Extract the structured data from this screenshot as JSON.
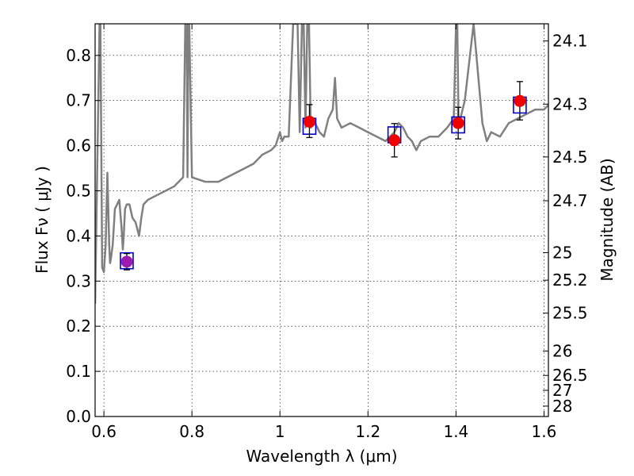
{
  "chart_data": {
    "type": "line",
    "xlabel": "Wavelength  λ (μm)",
    "ylabel": "Flux  Fν  ( μJy )",
    "ylabel_right": "Magnitude (AB)",
    "xlim": [
      0.58,
      1.61
    ],
    "ylim": [
      0.0,
      0.87
    ],
    "grid": true,
    "x_ticks": [
      {
        "value": 0.6,
        "label": "0.6"
      },
      {
        "value": 0.8,
        "label": "0.8"
      },
      {
        "value": 1.0,
        "label": "1"
      },
      {
        "value": 1.2,
        "label": "1.2"
      },
      {
        "value": 1.4,
        "label": "1.4"
      },
      {
        "value": 1.6,
        "label": "1.6"
      }
    ],
    "y_ticks": [
      {
        "value": 0.0,
        "label": "0.0"
      },
      {
        "value": 0.1,
        "label": "0.1"
      },
      {
        "value": 0.2,
        "label": "0.2"
      },
      {
        "value": 0.3,
        "label": "0.3"
      },
      {
        "value": 0.4,
        "label": "0.4"
      },
      {
        "value": 0.5,
        "label": "0.5"
      },
      {
        "value": 0.6,
        "label": "0.6"
      },
      {
        "value": 0.7,
        "label": "0.7"
      },
      {
        "value": 0.8,
        "label": "0.8"
      }
    ],
    "mag_ticks": [
      {
        "flux": 0.832,
        "label": "24.1"
      },
      {
        "flux": 0.692,
        "label": "24.3"
      },
      {
        "flux": 0.575,
        "label": "24.5"
      },
      {
        "flux": 0.478,
        "label": "24.7"
      },
      {
        "flux": 0.363,
        "label": "25"
      },
      {
        "flux": 0.302,
        "label": "25.2"
      },
      {
        "flux": 0.229,
        "label": "25.5"
      },
      {
        "flux": 0.145,
        "label": "26"
      },
      {
        "flux": 0.091,
        "label": "26.5"
      },
      {
        "flux": 0.058,
        "label": "27"
      },
      {
        "flux": 0.023,
        "label": "28"
      }
    ],
    "sed_model": {
      "color": "#808080",
      "x": [
        0.58,
        0.59,
        0.592,
        0.596,
        0.6,
        0.604,
        0.608,
        0.612,
        0.614,
        0.616,
        0.62,
        0.625,
        0.63,
        0.635,
        0.64,
        0.643,
        0.645,
        0.648,
        0.652,
        0.658,
        0.665,
        0.672,
        0.68,
        0.685,
        0.69,
        0.7,
        0.72,
        0.74,
        0.76,
        0.78,
        0.785,
        0.788,
        0.79,
        0.792,
        0.794,
        0.8,
        0.83,
        0.86,
        0.9,
        0.92,
        0.94,
        0.96,
        0.98,
        0.99,
        1.0,
        1.005,
        1.01,
        1.02,
        1.03,
        1.04,
        1.045,
        1.05,
        1.054,
        1.058,
        1.062,
        1.066,
        1.07,
        1.08,
        1.09,
        1.1,
        1.11,
        1.12,
        1.125,
        1.13,
        1.14,
        1.16,
        1.18,
        1.2,
        1.22,
        1.24,
        1.26,
        1.27,
        1.28,
        1.29,
        1.3,
        1.31,
        1.32,
        1.34,
        1.36,
        1.38,
        1.395,
        1.4,
        1.403,
        1.406,
        1.41,
        1.42,
        1.44,
        1.46,
        1.47,
        1.48,
        1.5,
        1.52,
        1.54,
        1.56,
        1.58,
        1.6,
        1.61
      ],
      "y": [
        0.25,
        0.87,
        0.87,
        0.33,
        0.32,
        0.38,
        0.54,
        0.38,
        0.34,
        0.35,
        0.38,
        0.46,
        0.47,
        0.48,
        0.42,
        0.37,
        0.4,
        0.46,
        0.47,
        0.47,
        0.44,
        0.43,
        0.4,
        0.44,
        0.47,
        0.48,
        0.49,
        0.5,
        0.51,
        0.53,
        0.87,
        0.87,
        0.53,
        0.87,
        0.87,
        0.53,
        0.52,
        0.52,
        0.54,
        0.55,
        0.56,
        0.58,
        0.59,
        0.6,
        0.63,
        0.61,
        0.62,
        0.62,
        0.87,
        0.87,
        0.63,
        0.87,
        0.87,
        0.64,
        0.87,
        0.87,
        0.64,
        0.65,
        0.63,
        0.62,
        0.66,
        0.68,
        0.75,
        0.66,
        0.64,
        0.65,
        0.64,
        0.63,
        0.62,
        0.61,
        0.63,
        0.65,
        0.64,
        0.62,
        0.61,
        0.59,
        0.61,
        0.62,
        0.62,
        0.64,
        0.66,
        0.87,
        0.87,
        0.64,
        0.66,
        0.7,
        0.87,
        0.65,
        0.61,
        0.63,
        0.62,
        0.65,
        0.66,
        0.67,
        0.68,
        0.68,
        0.69
      ]
    },
    "model_photometry": {
      "marker": "square",
      "color": "#0000cc",
      "x": [
        0.652,
        1.067,
        1.26,
        1.405,
        1.545
      ],
      "y": [
        0.345,
        0.643,
        0.624,
        0.646,
        0.69
      ]
    },
    "observed_photometry": [
      {
        "x": 0.652,
        "y": 0.343,
        "yerr_low": 0.018,
        "yerr_high": 0.018,
        "color": "#9b1bb0"
      },
      {
        "x": 1.067,
        "y": 0.653,
        "yerr_low": 0.035,
        "yerr_high": 0.038,
        "color": "#ee0000"
      },
      {
        "x": 1.26,
        "y": 0.612,
        "yerr_low": 0.037,
        "yerr_high": 0.037,
        "color": "#ee0000"
      },
      {
        "x": 1.405,
        "y": 0.65,
        "yerr_low": 0.035,
        "yerr_high": 0.035,
        "color": "#ee0000"
      },
      {
        "x": 1.545,
        "y": 0.699,
        "yerr_low": 0.042,
        "yerr_high": 0.043,
        "color": "#ee0000"
      }
    ]
  }
}
